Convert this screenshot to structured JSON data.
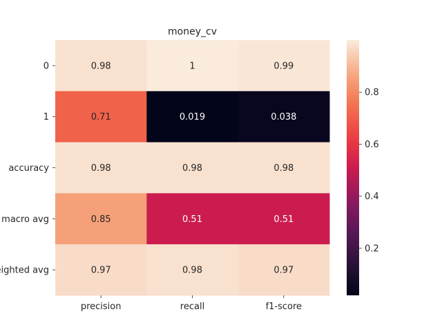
{
  "chart_data": {
    "type": "heatmap",
    "title": "money_cv",
    "xlabel": "",
    "ylabel": "",
    "columns": [
      "precision",
      "recall",
      "f1-score"
    ],
    "rows": [
      "0",
      "1",
      "accuracy",
      "macro avg",
      "weighted avg"
    ],
    "values": [
      [
        0.98,
        1.0,
        0.99
      ],
      [
        0.71,
        0.019,
        0.038
      ],
      [
        0.98,
        0.98,
        0.98
      ],
      [
        0.85,
        0.51,
        0.51
      ],
      [
        0.97,
        0.98,
        0.97
      ]
    ],
    "annotations": [
      [
        "0.98",
        "1",
        "0.99"
      ],
      [
        "0.71",
        "0.019",
        "0.038"
      ],
      [
        "0.98",
        "0.98",
        "0.98"
      ],
      [
        "0.85",
        "0.51",
        "0.51"
      ],
      [
        "0.97",
        "0.98",
        "0.97"
      ]
    ],
    "colorbar": {
      "colormap": "rocket",
      "range": [
        0.019,
        1.0
      ],
      "ticks": [
        0.2,
        0.4,
        0.6,
        0.8
      ],
      "tick_labels": [
        "0.2",
        "0.4",
        "0.6",
        "0.8"
      ]
    },
    "grid": false
  }
}
